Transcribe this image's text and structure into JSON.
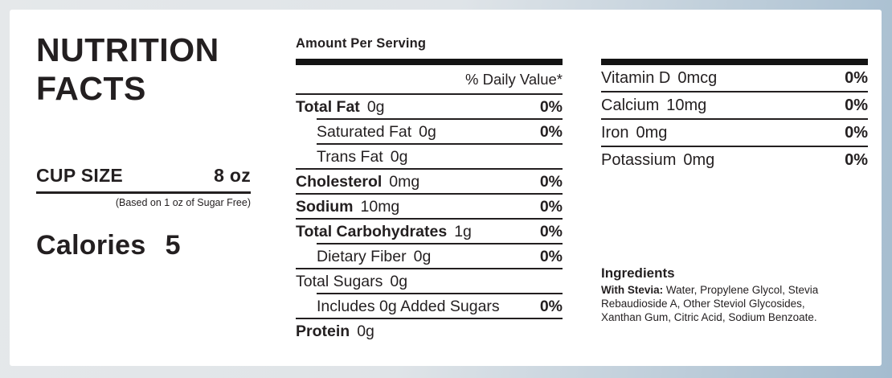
{
  "header": {
    "title_line1": "NUTRITION",
    "title_line2": "FACTS"
  },
  "cup_size": {
    "label": "CUP SIZE",
    "value": "8 oz",
    "note": "(Based on 1 oz of Sugar Free)"
  },
  "calories": {
    "label": "Calories",
    "value": "5"
  },
  "serving": {
    "amount_per_serving": "Amount Per Serving",
    "daily_value_header": "% Daily Value*"
  },
  "nutrients": [
    {
      "name": "Total Fat",
      "amount": "0g",
      "dv": "0%"
    },
    {
      "name": "Saturated Fat",
      "amount": "0g",
      "dv": "0%"
    },
    {
      "name": "Trans Fat",
      "amount": "0g",
      "dv": ""
    },
    {
      "name": "Cholesterol",
      "amount": "0mg",
      "dv": "0%"
    },
    {
      "name": "Sodium",
      "amount": "10mg",
      "dv": "0%"
    },
    {
      "name": "Total Carbohydrates",
      "amount": "1g",
      "dv": "0%"
    },
    {
      "name": "Dietary Fiber",
      "amount": "0g",
      "dv": "0%"
    },
    {
      "name": "Total Sugars",
      "amount": "0g",
      "dv": ""
    },
    {
      "name": "Includes 0g Added Sugars",
      "amount": "",
      "dv": "0%"
    },
    {
      "name": "Protein",
      "amount": "0g",
      "dv": ""
    }
  ],
  "minerals": [
    {
      "name": "Vitamin D",
      "amount": "0mcg",
      "dv": "0%"
    },
    {
      "name": "Calcium",
      "amount": "10mg",
      "dv": "0%"
    },
    {
      "name": "Iron",
      "amount": "0mg",
      "dv": "0%"
    },
    {
      "name": "Potassium",
      "amount": "0mg",
      "dv": "0%"
    }
  ],
  "ingredients": {
    "heading": "Ingredients",
    "prefix": "With Stevia:",
    "text": "Water, Propylene Glycol, Stevia Rebaudioside A, Other Steviol Glycosides, Xanthan Gum, Citric Acid, Sodium Benzoate."
  },
  "colors": {
    "text": "#231f20",
    "bar": "#141414",
    "card_bg": "#ffffff",
    "frame_light": "#e5e8ea",
    "frame_blue": "#a4bccf"
  }
}
